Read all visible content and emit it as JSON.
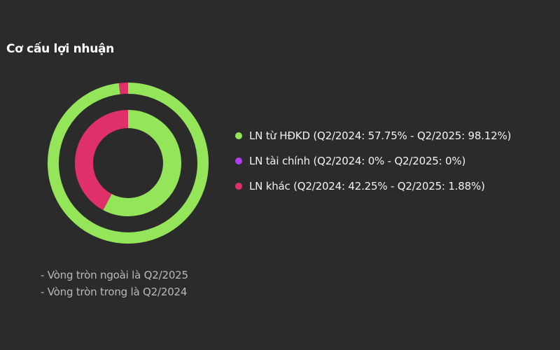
{
  "chart_data": {
    "type": "donut",
    "title": "Cơ cấu lợi nhuận",
    "rings": [
      {
        "name": "Q2/2025",
        "ring": "outer",
        "values": [
          98.12,
          0,
          1.88
        ]
      },
      {
        "name": "Q2/2024",
        "ring": "inner",
        "values": [
          57.75,
          0,
          42.25
        ]
      }
    ],
    "categories": [
      {
        "key": "hdkd",
        "color": "#95e55a",
        "label": "LN từ HĐKD (Q2/2024: 57.75% - Q2/2025: 98.12%)"
      },
      {
        "key": "taichinh",
        "color": "#b23cf2",
        "label": "LN tài chính (Q2/2024: 0% - Q2/2025: 0%)"
      },
      {
        "key": "khac",
        "color": "#e0306a",
        "label": "LN khác (Q2/2024: 42.25% - Q2/2025: 1.88%)"
      }
    ],
    "notes": [
      "- Vòng tròn ngoài là Q2/2025",
      "- Vòng tròn trong là Q2/2024"
    ]
  }
}
